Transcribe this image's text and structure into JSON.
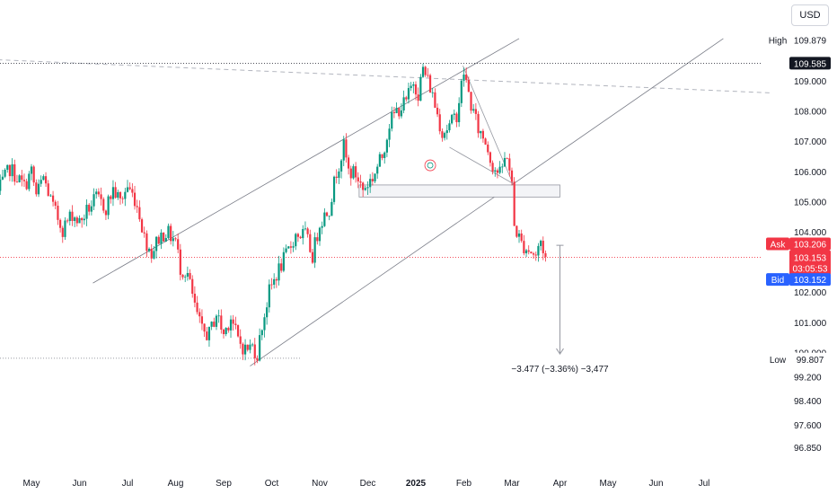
{
  "currency_label": "USD",
  "chart_data": {
    "type": "candlestick",
    "title": "",
    "xlabel": "",
    "ylabel": "",
    "ylim": [
      96.5,
      111.5
    ],
    "grid": false,
    "x_ticks": [
      {
        "label": "May",
        "t": 0
      },
      {
        "label": "Jun",
        "t": 1
      },
      {
        "label": "Jul",
        "t": 2
      },
      {
        "label": "Aug",
        "t": 3
      },
      {
        "label": "Sep",
        "t": 4
      },
      {
        "label": "Oct",
        "t": 5
      },
      {
        "label": "Nov",
        "t": 6
      },
      {
        "label": "Dec",
        "t": 7
      },
      {
        "label": "2025",
        "t": 8,
        "bold": true
      },
      {
        "label": "Feb",
        "t": 9
      },
      {
        "label": "Mar",
        "t": 10
      },
      {
        "label": "Apr",
        "t": 11
      },
      {
        "label": "May",
        "t": 12
      },
      {
        "label": "Jun",
        "t": 13
      },
      {
        "label": "Jul",
        "t": 14
      }
    ],
    "y_ticks": [
      "109.000",
      "108.000",
      "107.000",
      "106.000",
      "105.000",
      "104.000",
      "102.000",
      "101.000",
      "100.000",
      "99.200",
      "98.400",
      "97.600",
      "96.850"
    ],
    "y_tick_values": [
      109.0,
      108.0,
      107.0,
      106.0,
      105.0,
      104.0,
      102.0,
      101.0,
      100.0,
      99.2,
      98.4,
      97.6,
      96.85
    ],
    "price_path": [
      {
        "t": -0.7,
        "p": 105.3
      },
      {
        "t": -0.45,
        "p": 106.1
      },
      {
        "t": -0.15,
        "p": 105.5
      },
      {
        "t": 0.0,
        "p": 106.0
      },
      {
        "t": 0.1,
        "p": 105.2
      },
      {
        "t": 0.25,
        "p": 105.8
      },
      {
        "t": 0.45,
        "p": 104.8
      },
      {
        "t": 0.65,
        "p": 104.1
      },
      {
        "t": 0.85,
        "p": 104.6
      },
      {
        "t": 1.0,
        "p": 104.3
      },
      {
        "t": 1.2,
        "p": 104.8
      },
      {
        "t": 1.35,
        "p": 105.1
      },
      {
        "t": 1.55,
        "p": 104.8
      },
      {
        "t": 1.7,
        "p": 105.4
      },
      {
        "t": 1.85,
        "p": 105.0
      },
      {
        "t": 2.0,
        "p": 105.5
      },
      {
        "t": 2.15,
        "p": 105.1
      },
      {
        "t": 2.25,
        "p": 104.6
      },
      {
        "t": 2.35,
        "p": 103.8
      },
      {
        "t": 2.5,
        "p": 103.3
      },
      {
        "t": 2.65,
        "p": 103.8
      },
      {
        "t": 2.8,
        "p": 104.0
      },
      {
        "t": 3.0,
        "p": 103.7
      },
      {
        "t": 3.1,
        "p": 102.8
      },
      {
        "t": 3.25,
        "p": 102.6
      },
      {
        "t": 3.4,
        "p": 101.5
      },
      {
        "t": 3.55,
        "p": 100.7
      },
      {
        "t": 3.7,
        "p": 100.6
      },
      {
        "t": 3.85,
        "p": 101.3
      },
      {
        "t": 4.0,
        "p": 100.6
      },
      {
        "t": 4.15,
        "p": 101.2
      },
      {
        "t": 4.3,
        "p": 100.4
      },
      {
        "t": 4.45,
        "p": 100.1
      },
      {
        "t": 4.6,
        "p": 100.2
      },
      {
        "t": 4.7,
        "p": 99.95
      },
      {
        "t": 4.8,
        "p": 100.9
      },
      {
        "t": 4.95,
        "p": 102.0
      },
      {
        "t": 5.1,
        "p": 102.6
      },
      {
        "t": 5.3,
        "p": 103.2
      },
      {
        "t": 5.5,
        "p": 103.9
      },
      {
        "t": 5.7,
        "p": 103.9
      },
      {
        "t": 5.85,
        "p": 103.2
      },
      {
        "t": 6.0,
        "p": 104.3
      },
      {
        "t": 6.2,
        "p": 104.8
      },
      {
        "t": 6.35,
        "p": 106.0
      },
      {
        "t": 6.5,
        "p": 106.8
      },
      {
        "t": 6.6,
        "p": 106.0
      },
      {
        "t": 6.75,
        "p": 105.9
      },
      {
        "t": 6.9,
        "p": 105.4
      },
      {
        "t": 7.1,
        "p": 105.8
      },
      {
        "t": 7.3,
        "p": 106.5
      },
      {
        "t": 7.45,
        "p": 107.6
      },
      {
        "t": 7.6,
        "p": 108.0
      },
      {
        "t": 7.8,
        "p": 108.3
      },
      {
        "t": 7.95,
        "p": 109.0
      },
      {
        "t": 8.05,
        "p": 108.6
      },
      {
        "t": 8.15,
        "p": 109.4
      },
      {
        "t": 8.3,
        "p": 108.8
      },
      {
        "t": 8.4,
        "p": 108.2
      },
      {
        "t": 8.55,
        "p": 107.3
      },
      {
        "t": 8.7,
        "p": 107.5
      },
      {
        "t": 8.85,
        "p": 107.9
      },
      {
        "t": 9.0,
        "p": 109.3
      },
      {
        "t": 9.15,
        "p": 108.2
      },
      {
        "t": 9.3,
        "p": 107.4
      },
      {
        "t": 9.45,
        "p": 107.0
      },
      {
        "t": 9.6,
        "p": 106.2
      },
      {
        "t": 9.75,
        "p": 105.9
      },
      {
        "t": 9.9,
        "p": 106.6
      },
      {
        "t": 10.0,
        "p": 105.5
      },
      {
        "t": 10.05,
        "p": 104.2
      },
      {
        "t": 10.2,
        "p": 103.6
      },
      {
        "t": 10.35,
        "p": 103.4
      },
      {
        "t": 10.5,
        "p": 103.2
      },
      {
        "t": 10.6,
        "p": 103.7
      },
      {
        "t": 10.7,
        "p": 103.15
      }
    ],
    "annotations": {
      "measurement": "−3.477 (−3.36%) −3,477",
      "channel_upper": {
        "t1": 1.28,
        "p1": 102.3,
        "t2": 10.15,
        "p2": 110.4
      },
      "channel_lower": {
        "t1": 4.55,
        "p1": 99.55,
        "t2": 14.4,
        "p2": 110.4
      },
      "trend_line": {
        "t1": -0.7,
        "p1": 109.7,
        "t2": 15.4,
        "p2": 108.6
      },
      "wedge_upper": {
        "t1": 8.98,
        "p1": 109.5,
        "t2": 10.02,
        "p2": 105.6
      },
      "wedge_lower": {
        "t1": 8.7,
        "p1": 106.8,
        "t2": 10.02,
        "p2": 105.6
      },
      "zone": {
        "t1": 6.82,
        "t2": 11.0,
        "p1": 105.55,
        "p2": 105.15
      },
      "high_line_price": 109.585,
      "low_line": {
        "t1": -0.7,
        "t2": 5.6,
        "p": 99.807
      },
      "measure_arrow": {
        "t": 11.0,
        "p1": 103.55,
        "p2": 99.95
      }
    },
    "price_labels": {
      "high_label": "High",
      "high": "109.879",
      "last": "109.585",
      "ask_label": "Ask",
      "ask": "103.206",
      "current": "103.153",
      "countdown": "03:05:53",
      "bid_label": "Bid",
      "bid": "103.152",
      "low_label": "Low",
      "low": "99.807"
    },
    "colors": {
      "up": "#089981",
      "down": "#f23645",
      "ask_bg": "#f23645",
      "bid_bg": "#2962ff",
      "last_bg": "#131722",
      "current_line": "#f23645"
    }
  }
}
